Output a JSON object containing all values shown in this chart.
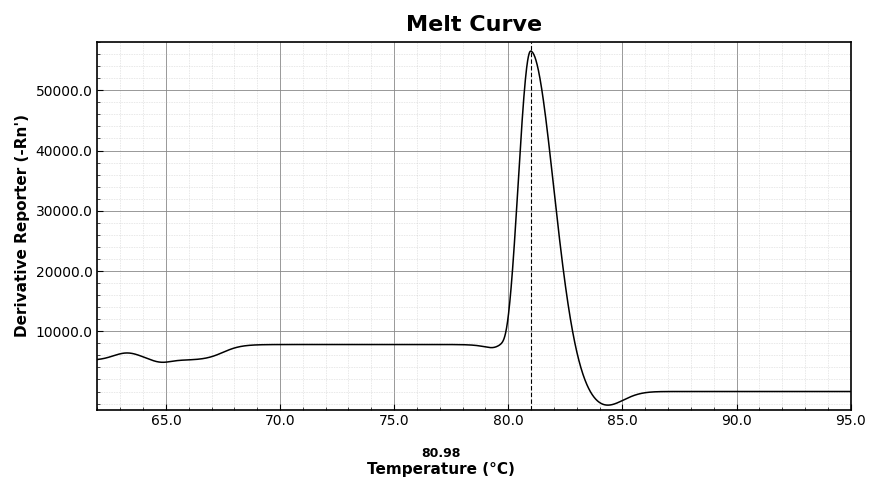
{
  "title": "Melt Curve",
  "xlabel": "Temperature (°C)",
  "ylabel": "Derivative Reporter (-Rn')",
  "xlim": [
    62.0,
    95.0
  ],
  "ylim": [
    -3000,
    58000
  ],
  "yticks": [
    10000.0,
    20000.0,
    30000.0,
    40000.0,
    50000.0
  ],
  "xticks": [
    65.0,
    70.0,
    75.0,
    80.0,
    85.0,
    90.0,
    95.0
  ],
  "peak_temp": 80.98,
  "peak_value": 56500,
  "line_color": "#000000",
  "bg_color": "#ffffff",
  "grid_major_color": "#888888",
  "grid_minor_color": "#bbbbbb",
  "title_fontsize": 16,
  "label_fontsize": 11,
  "tick_fontsize": 10
}
